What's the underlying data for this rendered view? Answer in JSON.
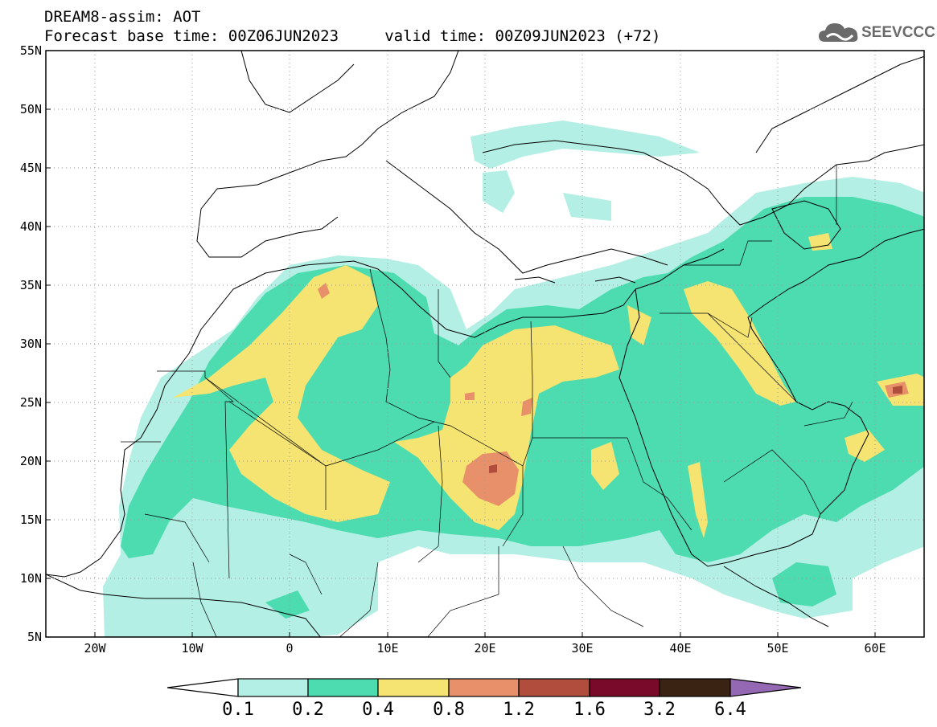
{
  "header": {
    "line1": "DREAM8-assim: AOT",
    "line2": "Forecast base time: 00Z06JUN2023     valid time: 00Z09JUN2023 (+72)"
  },
  "logo": {
    "text": "SEEVCCC",
    "icon": "cloud-icon"
  },
  "axes": {
    "lat_labels": [
      "55N",
      "50N",
      "45N",
      "40N",
      "35N",
      "30N",
      "25N",
      "20N",
      "15N",
      "10N",
      "5N"
    ],
    "lon_labels": [
      "20W",
      "10W",
      "0",
      "10E",
      "20E",
      "30E",
      "40E",
      "50E",
      "60E"
    ],
    "lat_range": [
      5,
      55
    ],
    "lon_range": [
      -25,
      65
    ],
    "grid": "dotted"
  },
  "colorbar": {
    "labels": [
      "0.1",
      "0.2",
      "0.4",
      "0.8",
      "1.2",
      "1.6",
      "3.2",
      "6.4"
    ],
    "colors": [
      "#b3efe4",
      "#4ddbb0",
      "#f5e471",
      "#e8906a",
      "#b04d3c",
      "#7a0a2a",
      "#3a2312",
      "#9468b2"
    ]
  },
  "chart_data": {
    "type": "heatmap",
    "title": "DREAM8-assim: AOT",
    "levels": [
      0.1,
      0.2,
      0.4,
      0.8,
      1.2,
      1.6,
      3.2,
      6.4
    ],
    "xlim": [
      -25,
      65
    ],
    "ylim": [
      5,
      55
    ]
  }
}
